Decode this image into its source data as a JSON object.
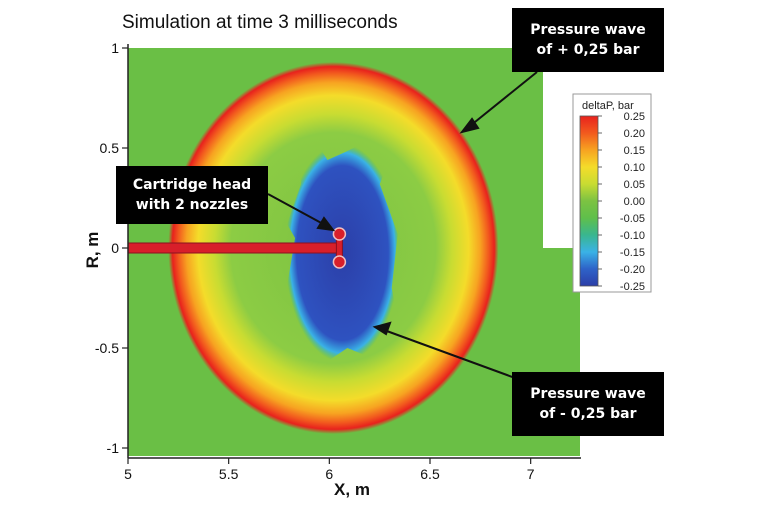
{
  "title": "Simulation at time 3 milliseconds",
  "chart_data": {
    "type": "heatmap",
    "xlabel": "X, m",
    "ylabel": "R, m",
    "xlim": [
      5,
      7.25
    ],
    "ylim": [
      -1.05,
      1.02
    ],
    "x_ticks": [
      "5",
      "5.5",
      "6",
      "6.5",
      "7"
    ],
    "x_tick_values": [
      5,
      5.5,
      6,
      6.5,
      7
    ],
    "y_ticks": [
      "1",
      "0.5",
      "0",
      "-0.5",
      "-1"
    ],
    "y_tick_values": [
      1,
      0.5,
      0,
      -0.5,
      -1
    ],
    "colorbar": {
      "title": "deltaP, bar",
      "labels": [
        "0.25",
        "0.20",
        "0.15",
        "0.10",
        "0.05",
        "0.00",
        "-0.05",
        "-0.10",
        "-0.15",
        "-0.20",
        "-0.25"
      ],
      "values": [
        0.25,
        0.2,
        0.15,
        0.1,
        0.05,
        0,
        -0.05,
        -0.1,
        -0.15,
        -0.2,
        -0.25
      ],
      "colors": [
        "#e8221d",
        "#f25a1e",
        "#f7a321",
        "#f4dc2a",
        "#c8dc32",
        "#7cc242",
        "#5fbf4b",
        "#39b68f",
        "#3ab2e6",
        "#2e62c8",
        "#2c3fa8"
      ]
    },
    "fields": {
      "ambient_color": "#6abf45",
      "positive_wave": {
        "deltaP": 0.25,
        "center_x": 6.02,
        "center_r": 0,
        "radius_x": 0.82,
        "radius_r": 0.93
      },
      "negative_region": {
        "deltaP": -0.25,
        "x_range": [
          5.8,
          6.3
        ],
        "r_range": [
          -0.55,
          0.52
        ]
      },
      "cartridge": {
        "x_range": [
          5,
          6.05
        ],
        "r": 0,
        "nozzles_r": [
          0.07,
          -0.07
        ]
      }
    }
  },
  "annotations": {
    "pressure_plus": {
      "line1": "Pressure wave",
      "line2": "of + 0,25 bar"
    },
    "cartridge_head": {
      "line1": "Cartridge head",
      "line2": "with 2 nozzles"
    },
    "pressure_minus": {
      "line1": "Pressure wave",
      "line2": "of - 0,25 bar"
    }
  }
}
